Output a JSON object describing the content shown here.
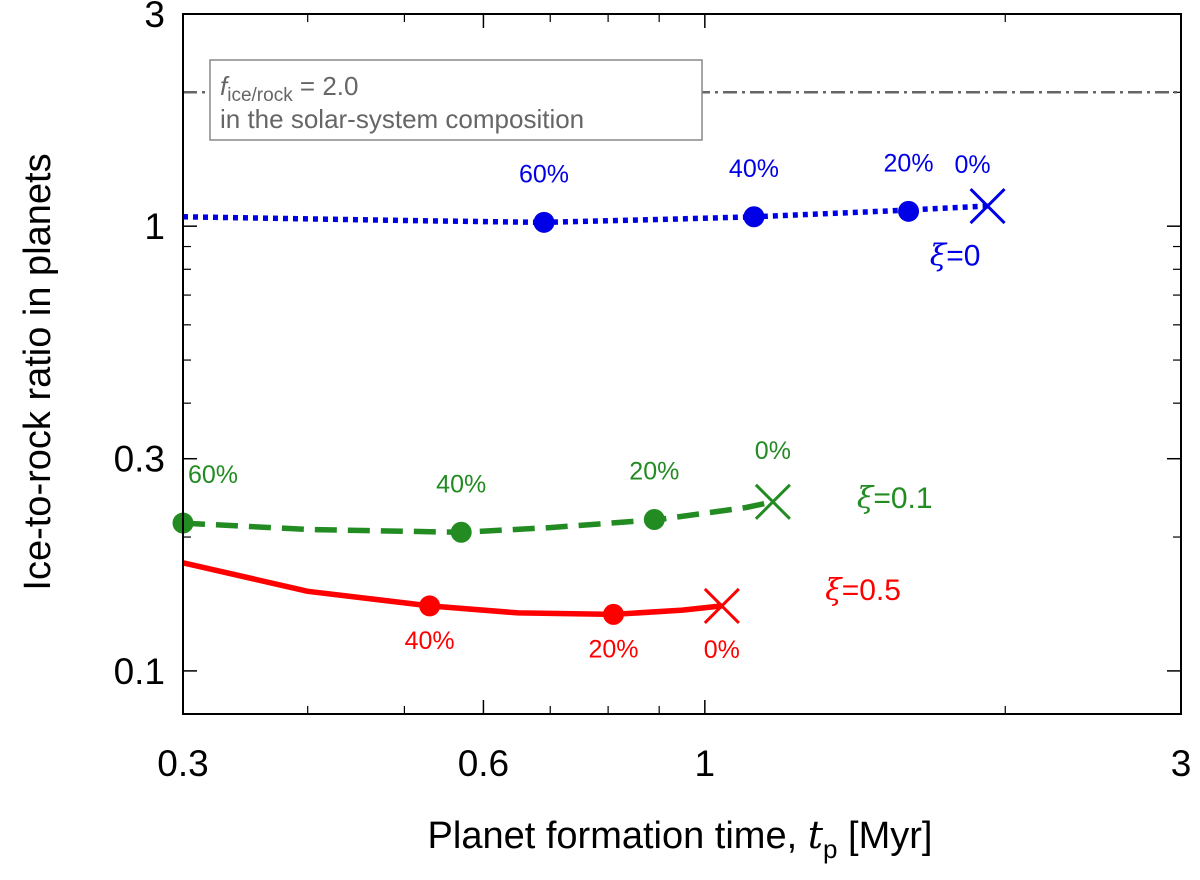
{
  "chart_data": {
    "type": "line",
    "xscale": "log",
    "yscale": "log",
    "xlim": [
      0.3,
      3
    ],
    "ylim": [
      0.08,
      3
    ],
    "xlabel": "Planet formation time, ",
    "xlabel_var": "t",
    "xlabel_sub": "p",
    "xlabel_unit": " [Myr]",
    "ylabel": "Ice-to-rock ratio in planets",
    "xticks": [
      {
        "value": 0.3,
        "label": "0.3"
      },
      {
        "value": 0.6,
        "label": "0.6"
      },
      {
        "value": 1,
        "label": "1"
      },
      {
        "value": 3,
        "label": "3"
      }
    ],
    "yticks": [
      {
        "value": 0.1,
        "label": "0.1"
      },
      {
        "value": 0.3,
        "label": "0.3"
      },
      {
        "value": 1,
        "label": "1"
      },
      {
        "value": 3,
        "label": "3"
      }
    ],
    "reference_line": {
      "y": 2.0,
      "style": "dash-dot",
      "color": "#666666",
      "label_var": "f",
      "label_sub": "ice/rock",
      "label_value": " = 2.0",
      "label_line2": "in the solar-system composition"
    },
    "series": [
      {
        "name": "xi=0",
        "label_symbol": "ξ",
        "label_value": "=0",
        "color": "#0000e6",
        "style": "dotted",
        "curve": [
          [
            0.3,
            1.05
          ],
          [
            0.5,
            1.03
          ],
          [
            0.69,
            1.02
          ],
          [
            0.9,
            1.035
          ],
          [
            1.12,
            1.05
          ],
          [
            1.5,
            1.08
          ],
          [
            1.92,
            1.11
          ]
        ],
        "markers": [
          {
            "x": 0.69,
            "y": 1.02,
            "label": "60%"
          },
          {
            "x": 1.12,
            "y": 1.05,
            "label": "40%"
          },
          {
            "x": 1.6,
            "y": 1.08,
            "label": "20%"
          }
        ],
        "end": {
          "x": 1.92,
          "y": 1.11,
          "label": "0%"
        }
      },
      {
        "name": "xi=0.1",
        "label_symbol": "ξ",
        "label_value": "=0.1",
        "color": "#228b22",
        "style": "dashed",
        "curve": [
          [
            0.3,
            0.215
          ],
          [
            0.4,
            0.208
          ],
          [
            0.57,
            0.205
          ],
          [
            0.7,
            0.21
          ],
          [
            0.9,
            0.219
          ],
          [
            1.1,
            0.233
          ],
          [
            1.17,
            0.24
          ]
        ],
        "markers": [
          {
            "x": 0.3,
            "y": 0.215,
            "label": "60%"
          },
          {
            "x": 0.57,
            "y": 0.205,
            "label": "40%"
          },
          {
            "x": 0.89,
            "y": 0.219,
            "label": "20%"
          }
        ],
        "end": {
          "x": 1.17,
          "y": 0.24,
          "label": "0%"
        }
      },
      {
        "name": "xi=0.5",
        "label_symbol": "ξ",
        "label_value": "=0.5",
        "color": "#ff0000",
        "style": "solid",
        "curve": [
          [
            0.3,
            0.175
          ],
          [
            0.4,
            0.151
          ],
          [
            0.53,
            0.14
          ],
          [
            0.65,
            0.135
          ],
          [
            0.81,
            0.134
          ],
          [
            0.95,
            0.137
          ],
          [
            1.04,
            0.14
          ]
        ],
        "markers": [
          {
            "x": 0.53,
            "y": 0.14,
            "label": "40%"
          },
          {
            "x": 0.81,
            "y": 0.134,
            "label": "20%"
          }
        ],
        "end": {
          "x": 1.04,
          "y": 0.14,
          "label": "0%"
        }
      }
    ]
  }
}
